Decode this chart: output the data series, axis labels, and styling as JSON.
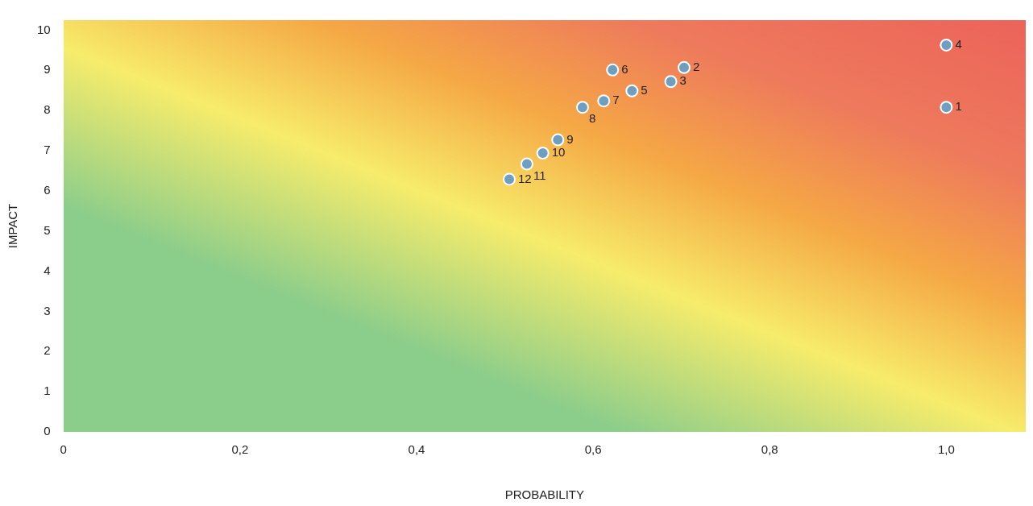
{
  "chart_data": {
    "type": "scatter",
    "xlabel": "PROBABILITY",
    "ylabel": "IMPACT",
    "x": [
      1.0,
      0.703,
      0.688,
      1.0,
      0.644,
      0.622,
      0.612,
      0.588,
      0.56,
      0.543,
      0.525,
      0.505
    ],
    "series": [
      {
        "color": "#6f9fc0",
        "values": [
          8.08,
          9.07,
          8.72,
          9.63,
          8.49,
          9.01,
          8.24,
          8.08,
          7.27,
          6.94,
          6.67,
          6.29
        ]
      }
    ],
    "annotations": [
      {
        "text": "1",
        "x": 1.0,
        "y": 8.08
      },
      {
        "text": "2",
        "x": 0.703,
        "y": 9.07
      },
      {
        "text": "3",
        "x": 0.688,
        "y": 8.72
      },
      {
        "text": "4",
        "x": 1.0,
        "y": 9.63
      },
      {
        "text": "5",
        "x": 0.644,
        "y": 8.49
      },
      {
        "text": "6",
        "x": 0.622,
        "y": 9.01
      },
      {
        "text": "7",
        "x": 0.612,
        "y": 8.24
      },
      {
        "text": "8",
        "x": 0.588,
        "y": 8.08
      },
      {
        "text": "9",
        "x": 0.56,
        "y": 7.27
      },
      {
        "text": "10",
        "x": 0.543,
        "y": 6.94
      },
      {
        "text": "11",
        "x": 0.525,
        "y": 6.67
      },
      {
        "text": "12",
        "x": 0.505,
        "y": 6.29
      }
    ],
    "xlim": [
      0,
      1.09
    ],
    "xticks": [
      0,
      {
        "value": 0.2,
        "label": "0,2"
      },
      {
        "value": 0.4,
        "label": "0,4"
      },
      {
        "value": 0.6,
        "label": "0,6"
      },
      {
        "value": 0.8,
        "label": "0,8"
      },
      {
        "value": 1.0,
        "label": "1,0"
      }
    ],
    "ylim": [
      0,
      10.25
    ],
    "yticks": [
      0,
      1,
      2,
      3,
      4,
      5,
      6,
      7,
      8,
      9,
      10
    ],
    "grid": false,
    "legend": false,
    "marker": "circle"
  }
}
